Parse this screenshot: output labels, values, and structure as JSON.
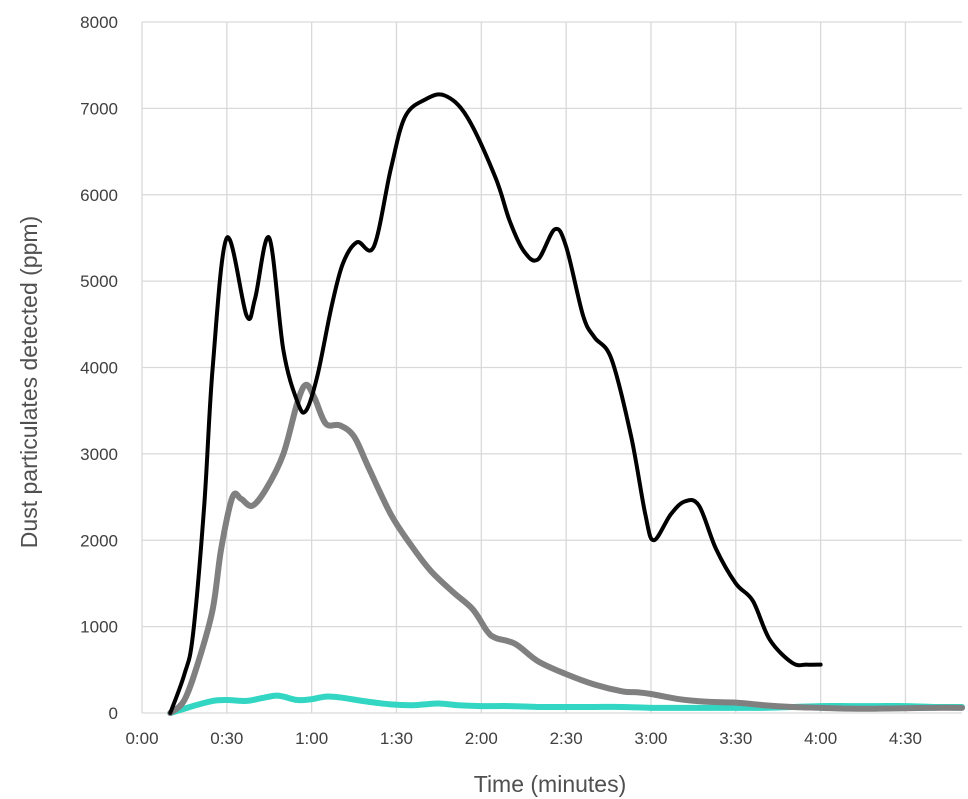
{
  "chart_data": {
    "type": "line",
    "title": "",
    "xlabel": "Time (minutes)",
    "ylabel": "Dust particulates detected (ppm)",
    "xlim": [
      0,
      290
    ],
    "ylim": [
      0,
      8000
    ],
    "x_ticks": [
      0,
      30,
      60,
      90,
      120,
      150,
      180,
      210,
      240,
      270
    ],
    "x_tick_labels": [
      "0:00",
      "0:30",
      "1:00",
      "1:30",
      "2:00",
      "2:30",
      "3:00",
      "3:30",
      "4:00",
      "4:30"
    ],
    "y_ticks": [
      0,
      1000,
      2000,
      3000,
      4000,
      5000,
      6000,
      7000,
      8000
    ],
    "y_tick_labels": [
      "0",
      "1000",
      "2000",
      "3000",
      "4000",
      "5000",
      "6000",
      "7000",
      "8000"
    ],
    "grid": true,
    "legend": "none",
    "series": [
      {
        "color": "#000000",
        "stroke_width": 4,
        "points": [
          [
            10,
            0
          ],
          [
            15,
            450
          ],
          [
            18,
            900
          ],
          [
            22,
            2400
          ],
          [
            25,
            4000
          ],
          [
            30,
            5500
          ],
          [
            37,
            4600
          ],
          [
            40,
            4800
          ],
          [
            45,
            5500
          ],
          [
            50,
            4200
          ],
          [
            55,
            3600
          ],
          [
            58,
            3500
          ],
          [
            62,
            3900
          ],
          [
            67,
            4700
          ],
          [
            71,
            5200
          ],
          [
            76,
            5450
          ],
          [
            82,
            5400
          ],
          [
            88,
            6300
          ],
          [
            93,
            6900
          ],
          [
            100,
            7100
          ],
          [
            107,
            7150
          ],
          [
            115,
            6900
          ],
          [
            125,
            6200
          ],
          [
            130,
            5700
          ],
          [
            135,
            5350
          ],
          [
            140,
            5250
          ],
          [
            146,
            5600
          ],
          [
            150,
            5400
          ],
          [
            156,
            4600
          ],
          [
            160,
            4350
          ],
          [
            166,
            4100
          ],
          [
            173,
            3200
          ],
          [
            178,
            2300
          ],
          [
            181,
            2000
          ],
          [
            187,
            2300
          ],
          [
            192,
            2450
          ],
          [
            197,
            2400
          ],
          [
            203,
            1900
          ],
          [
            210,
            1500
          ],
          [
            216,
            1300
          ],
          [
            222,
            850
          ],
          [
            230,
            580
          ],
          [
            235,
            560
          ],
          [
            240,
            560
          ]
        ]
      },
      {
        "color": "#808080",
        "stroke_width": 6,
        "points": [
          [
            10,
            0
          ],
          [
            15,
            150
          ],
          [
            20,
            600
          ],
          [
            25,
            1200
          ],
          [
            28,
            1900
          ],
          [
            32,
            2500
          ],
          [
            35,
            2480
          ],
          [
            39,
            2400
          ],
          [
            44,
            2600
          ],
          [
            50,
            3000
          ],
          [
            55,
            3600
          ],
          [
            58,
            3800
          ],
          [
            61,
            3650
          ],
          [
            65,
            3350
          ],
          [
            70,
            3330
          ],
          [
            75,
            3200
          ],
          [
            80,
            2850
          ],
          [
            88,
            2300
          ],
          [
            95,
            1950
          ],
          [
            102,
            1650
          ],
          [
            110,
            1400
          ],
          [
            117,
            1200
          ],
          [
            122,
            950
          ],
          [
            125,
            870
          ],
          [
            132,
            800
          ],
          [
            140,
            600
          ],
          [
            150,
            450
          ],
          [
            160,
            330
          ],
          [
            170,
            250
          ],
          [
            175,
            240
          ],
          [
            180,
            220
          ],
          [
            190,
            160
          ],
          [
            200,
            130
          ],
          [
            210,
            120
          ],
          [
            220,
            90
          ],
          [
            230,
            70
          ],
          [
            240,
            60
          ],
          [
            250,
            50
          ],
          [
            260,
            50
          ],
          [
            270,
            55
          ],
          [
            280,
            60
          ],
          [
            290,
            60
          ]
        ]
      },
      {
        "color": "#33d6c2",
        "stroke_width": 6,
        "points": [
          [
            10,
            0
          ],
          [
            18,
            80
          ],
          [
            25,
            140
          ],
          [
            30,
            150
          ],
          [
            37,
            140
          ],
          [
            42,
            170
          ],
          [
            47,
            200
          ],
          [
            50,
            190
          ],
          [
            55,
            150
          ],
          [
            60,
            160
          ],
          [
            65,
            190
          ],
          [
            70,
            180
          ],
          [
            80,
            130
          ],
          [
            88,
            100
          ],
          [
            95,
            90
          ],
          [
            100,
            100
          ],
          [
            105,
            110
          ],
          [
            112,
            90
          ],
          [
            120,
            80
          ],
          [
            130,
            80
          ],
          [
            140,
            70
          ],
          [
            150,
            70
          ],
          [
            160,
            70
          ],
          [
            170,
            70
          ],
          [
            180,
            60
          ],
          [
            190,
            60
          ],
          [
            200,
            60
          ],
          [
            210,
            60
          ],
          [
            220,
            60
          ],
          [
            230,
            70
          ],
          [
            240,
            80
          ],
          [
            250,
            80
          ],
          [
            260,
            80
          ],
          [
            270,
            80
          ],
          [
            280,
            70
          ],
          [
            290,
            70
          ]
        ]
      }
    ]
  }
}
